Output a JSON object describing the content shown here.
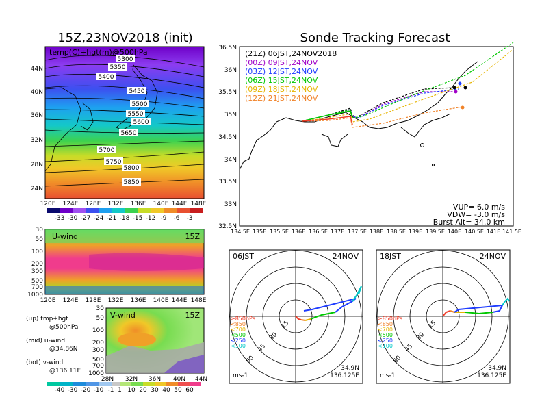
{
  "left": {
    "title": "15Z,23NOV2018 (init)",
    "map": {
      "label": "temp(C)+hgt(m)@500hPa",
      "lat_labels": [
        "44N",
        "40N",
        "36N",
        "32N",
        "28N",
        "24N"
      ],
      "lon_labels": [
        "120E",
        "124E",
        "128E",
        "132E",
        "136E",
        "140E",
        "144E",
        "148E"
      ],
      "contour_labels": [
        "5300",
        "5350",
        "5400",
        "5450",
        "5500",
        "5550",
        "5600",
        "5650",
        "5700",
        "5750",
        "5800",
        "5850"
      ],
      "colorbar_labels": [
        "-33",
        "-30",
        "-27",
        "-24",
        "-21",
        "-18",
        "-15",
        "-12",
        "-9",
        "-6",
        "-3"
      ]
    },
    "uwind": {
      "label": "U-wind",
      "time": "15Z",
      "p_labels": [
        "30",
        "50",
        "100",
        "200",
        "300",
        "500",
        "700",
        "1000"
      ],
      "lon_labels": [
        "120E",
        "124E",
        "128E",
        "132E",
        "136E",
        "140E",
        "144E",
        "148E"
      ]
    },
    "vwind": {
      "label": "V-wind",
      "time": "15Z",
      "p_labels": [
        "30",
        "50",
        "100",
        "200",
        "300",
        "500",
        "700",
        "1000"
      ],
      "lat_labels": [
        "28N",
        "32N",
        "36N",
        "40N",
        "44N"
      ]
    },
    "notes": [
      {
        "a": "(up) tmp+hgt",
        "b": "@500hPa"
      },
      {
        "a": "(mid) u-wind",
        "b": "@34.86N"
      },
      {
        "a": "(bot) v-wind",
        "b": "@136.11E"
      }
    ],
    "wind_colorbar_labels": [
      "-40",
      "-30",
      "-20",
      "-10",
      "-1",
      "1",
      "10",
      "20",
      "30",
      "40",
      "50",
      "60"
    ]
  },
  "right": {
    "title": "Sonde Tracking Forecast",
    "track": {
      "lat_labels": [
        "36.5N",
        "36N",
        "35.5N",
        "35N",
        "34.5N",
        "34N",
        "33.5N",
        "33N",
        "32.5N"
      ],
      "lon_labels": [
        "134.5E",
        "135E",
        "135.5E",
        "136E",
        "136.5E",
        "137E",
        "137.5E",
        "138E",
        "138.5E",
        "139E",
        "139.5E",
        "140E",
        "140.5E",
        "141E",
        "141.5E"
      ],
      "legend": [
        {
          "text": "(21Z)  06JST,24NOV2018",
          "color": "#000000"
        },
        {
          "text": "(00Z)  09JST,24NOV",
          "color": "#a000c8"
        },
        {
          "text": "(03Z)  12JST,24NOV",
          "color": "#1e3cff"
        },
        {
          "text": "(06Z)  15JST,24NOV",
          "color": "#00c800"
        },
        {
          "text": "(09Z)  18JST,24NOV",
          "color": "#e6b400"
        },
        {
          "text": "(12Z)  21JST,24NOV",
          "color": "#f08228"
        }
      ],
      "params": [
        "VUP=  6.0  m/s",
        "VDW= -3.0  m/s",
        "Burst Alt=  34.0  km"
      ]
    },
    "hodo_left": {
      "time": "06JST",
      "date": "24NOV",
      "ring_labels": [
        "15",
        "30",
        "45",
        "60"
      ],
      "legend": [
        {
          "text": "≥850hPa",
          "color": "#f03c28"
        },
        {
          "text": "<850",
          "color": "#f08228"
        },
        {
          "text": "<700",
          "color": "#e6b400"
        },
        {
          "text": "<500",
          "color": "#00c800"
        },
        {
          "text": "<250",
          "color": "#1e3cff"
        },
        {
          "text": "<100",
          "color": "#00c8c8"
        }
      ],
      "loc1": "34.9N",
      "loc2": "136.125E",
      "unit": "ms-1"
    },
    "hodo_right": {
      "time": "18JST",
      "date": "24NOV",
      "ring_labels": [
        "15",
        "30",
        "45",
        "60"
      ],
      "legend": [
        {
          "text": "≥850hPa",
          "color": "#f03c28"
        },
        {
          "text": "<850",
          "color": "#f08228"
        },
        {
          "text": "<700",
          "color": "#e6b400"
        },
        {
          "text": "<500",
          "color": "#00c800"
        },
        {
          "text": "<250",
          "color": "#1e3cff"
        },
        {
          "text": "<100",
          "color": "#00c8c8"
        }
      ],
      "loc1": "34.9N",
      "loc2": "136.125E",
      "unit": "ms-1"
    }
  },
  "chart_data": [
    {
      "type": "heatmap",
      "title": "15Z,23NOV2018 (init)",
      "subtitle": "temp(C)+hgt(m)@500hPa",
      "x_range": [
        "120E",
        "148E"
      ],
      "y_range": [
        "22N",
        "46N"
      ],
      "color_levels": [
        -33,
        -30,
        -27,
        -24,
        -21,
        -18,
        -15,
        -12,
        -9,
        -6,
        -3
      ],
      "contour_levels": [
        5300,
        5350,
        5400,
        5450,
        5500,
        5550,
        5600,
        5650,
        5700,
        5750,
        5800,
        5850
      ]
    },
    {
      "type": "heatmap",
      "title": "U-wind",
      "subtitle": "15Z",
      "x_range": [
        "120E",
        "148E"
      ],
      "y_range": [
        1000,
        30
      ]
    },
    {
      "type": "heatmap",
      "title": "V-wind",
      "subtitle": "15Z",
      "x_range": [
        "28N",
        "44N"
      ],
      "y_range": [
        1000,
        30
      ],
      "color_levels": [
        -40,
        -30,
        -20,
        -10,
        -1,
        1,
        10,
        20,
        30,
        40,
        50,
        60
      ]
    },
    {
      "type": "line",
      "title": "Sonde Tracking Forecast",
      "xlim": [
        134.5,
        141.5
      ],
      "ylim": [
        32.5,
        36.5
      ],
      "series": [
        {
          "name": "(21Z) 06JST,24NOV2018",
          "launch": [
            136.125,
            34.9
          ]
        },
        {
          "name": "(00Z) 09JST,24NOV"
        },
        {
          "name": "(03Z) 12JST,24NOV"
        },
        {
          "name": "(06Z) 15JST,24NOV"
        },
        {
          "name": "(09Z) 18JST,24NOV"
        },
        {
          "name": "(12Z) 21JST,24NOV"
        }
      ]
    },
    {
      "type": "scatter",
      "title": "06JST 24NOV",
      "ring_values": [
        15,
        30,
        45,
        60
      ]
    },
    {
      "type": "scatter",
      "title": "18JST 24NOV",
      "ring_values": [
        15,
        30,
        45,
        60
      ]
    }
  ]
}
